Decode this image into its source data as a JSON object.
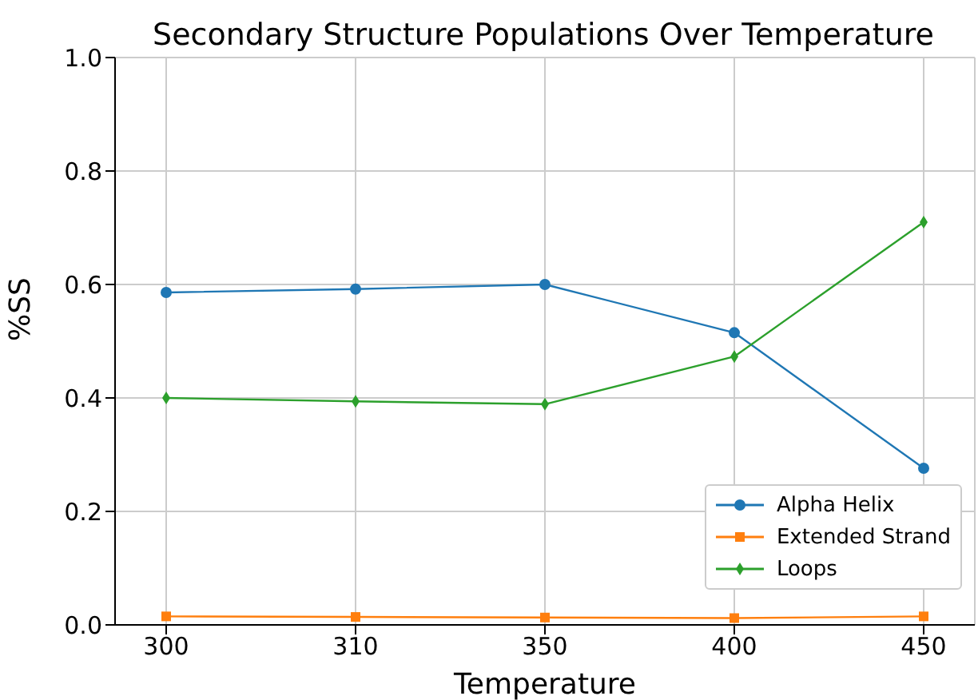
{
  "chart_data": {
    "type": "line",
    "title": "Secondary Structure Populations Over Temperature",
    "xlabel": "Temperature",
    "ylabel": "%SS",
    "categories": [
      "300",
      "310",
      "350",
      "400",
      "450"
    ],
    "series": [
      {
        "name": "Alpha Helix",
        "color": "#1f77b4",
        "marker": "circle",
        "values": [
          0.586,
          0.592,
          0.6,
          0.515,
          0.276
        ]
      },
      {
        "name": "Extended Strand",
        "color": "#ff7f0e",
        "marker": "square",
        "values": [
          0.015,
          0.014,
          0.013,
          0.012,
          0.015
        ]
      },
      {
        "name": "Loops",
        "color": "#2ca02c",
        "marker": "diamond",
        "values": [
          0.4,
          0.394,
          0.389,
          0.473,
          0.71
        ]
      }
    ],
    "ylim": [
      0,
      1
    ],
    "yticks": [
      {
        "value": 0,
        "label": "0.0"
      },
      {
        "value": 0.2,
        "label": "0.2"
      },
      {
        "value": 0.4,
        "label": "0.4"
      },
      {
        "value": 0.6,
        "label": "0.6"
      },
      {
        "value": 0.8,
        "label": "0.8"
      },
      {
        "value": 1,
        "label": "1.0"
      }
    ],
    "grid": true,
    "legend": "bottom right"
  }
}
